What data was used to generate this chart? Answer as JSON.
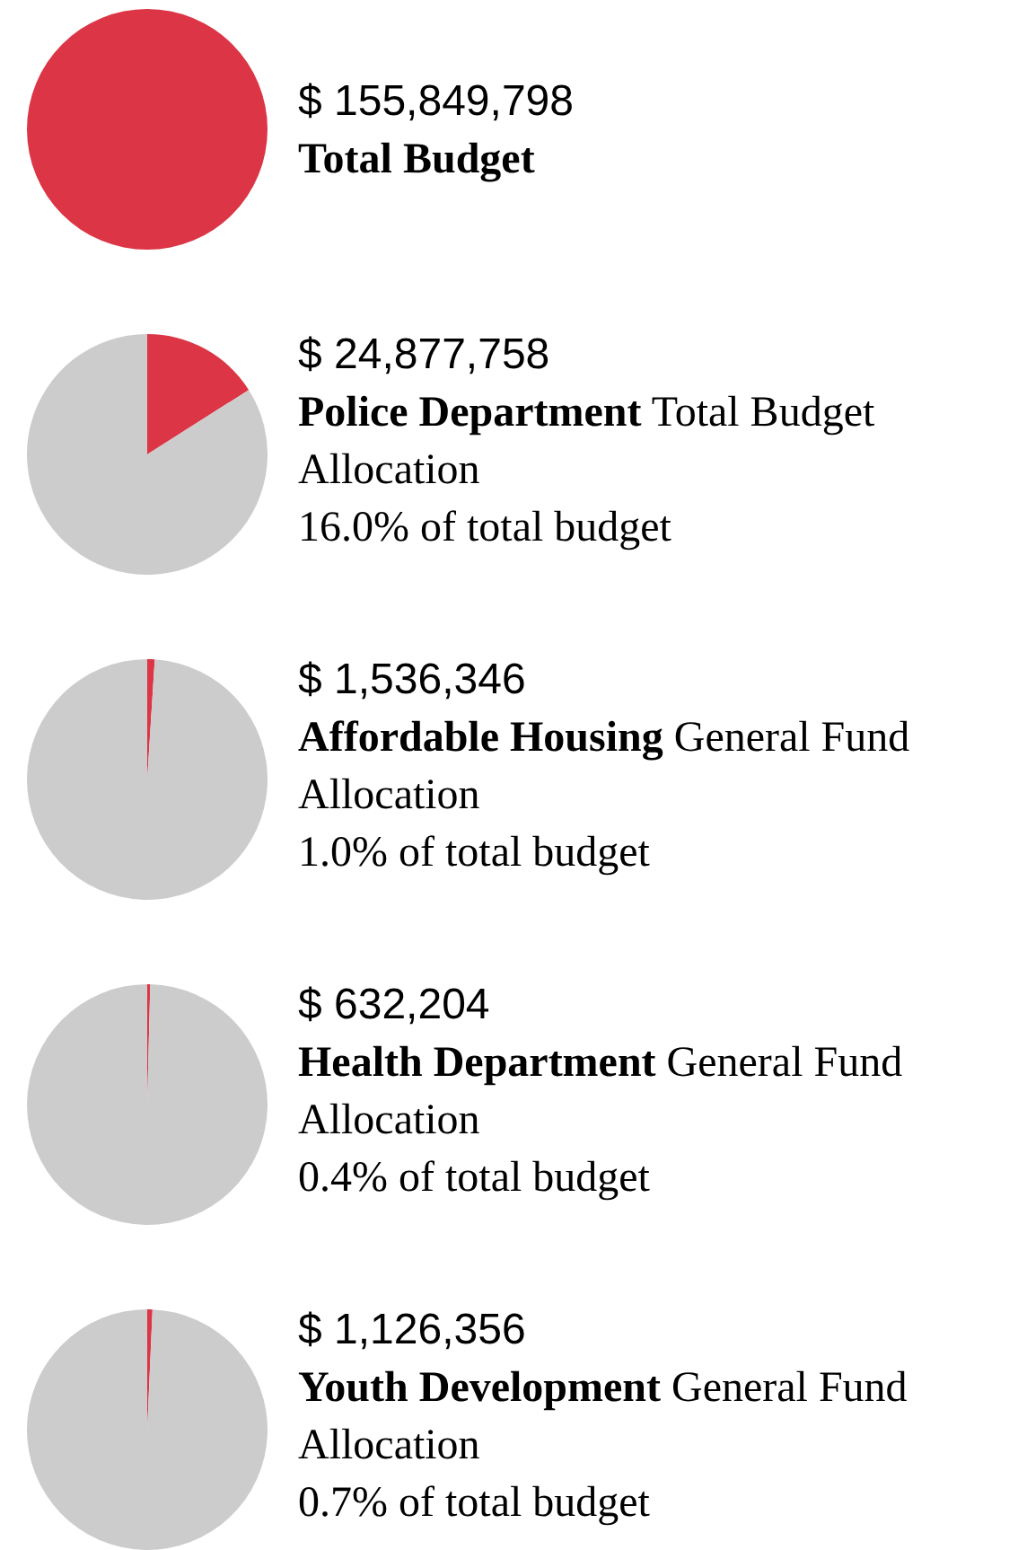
{
  "chart_data": [
    {
      "type": "pie",
      "title": "$ 155,849,798",
      "subtitle": "Total Budget",
      "categories": [
        null
      ],
      "values": [
        100
      ],
      "colors": [
        "#dc3545"
      ]
    },
    {
      "type": "pie",
      "title": "$ 24,877,758",
      "subtitle": "Police Department",
      "annotations": [
        "Total Budget Allocation",
        "16.0% of total budget"
      ],
      "categories": [
        null,
        null
      ],
      "values": [
        16.0,
        84.0
      ],
      "colors": [
        "#dc3545",
        "#cccccc"
      ]
    },
    {
      "type": "pie",
      "title": "$ 1,536,346",
      "subtitle": "Affordable Housing",
      "annotations": [
        "General Fund Allocation",
        "1.0% of total budget"
      ],
      "categories": [
        null,
        null
      ],
      "values": [
        1.0,
        99.0
      ],
      "colors": [
        "#dc3545",
        "#cccccc"
      ]
    },
    {
      "type": "pie",
      "title": "$ 632,204",
      "subtitle": "Health Department",
      "annotations": [
        "General Fund Allocation",
        "0.4% of total budget"
      ],
      "categories": [
        null,
        null
      ],
      "values": [
        0.4,
        99.6
      ],
      "colors": [
        "#dc3545",
        "#cccccc"
      ]
    },
    {
      "type": "pie",
      "title": "$ 1,126,356",
      "subtitle": "Youth Development",
      "annotations": [
        "General Fund Allocation",
        "0.7% of total budget"
      ],
      "categories": [
        null,
        null
      ],
      "values": [
        0.7,
        99.3
      ],
      "colors": [
        "#dc3545",
        "#cccccc"
      ]
    }
  ]
}
